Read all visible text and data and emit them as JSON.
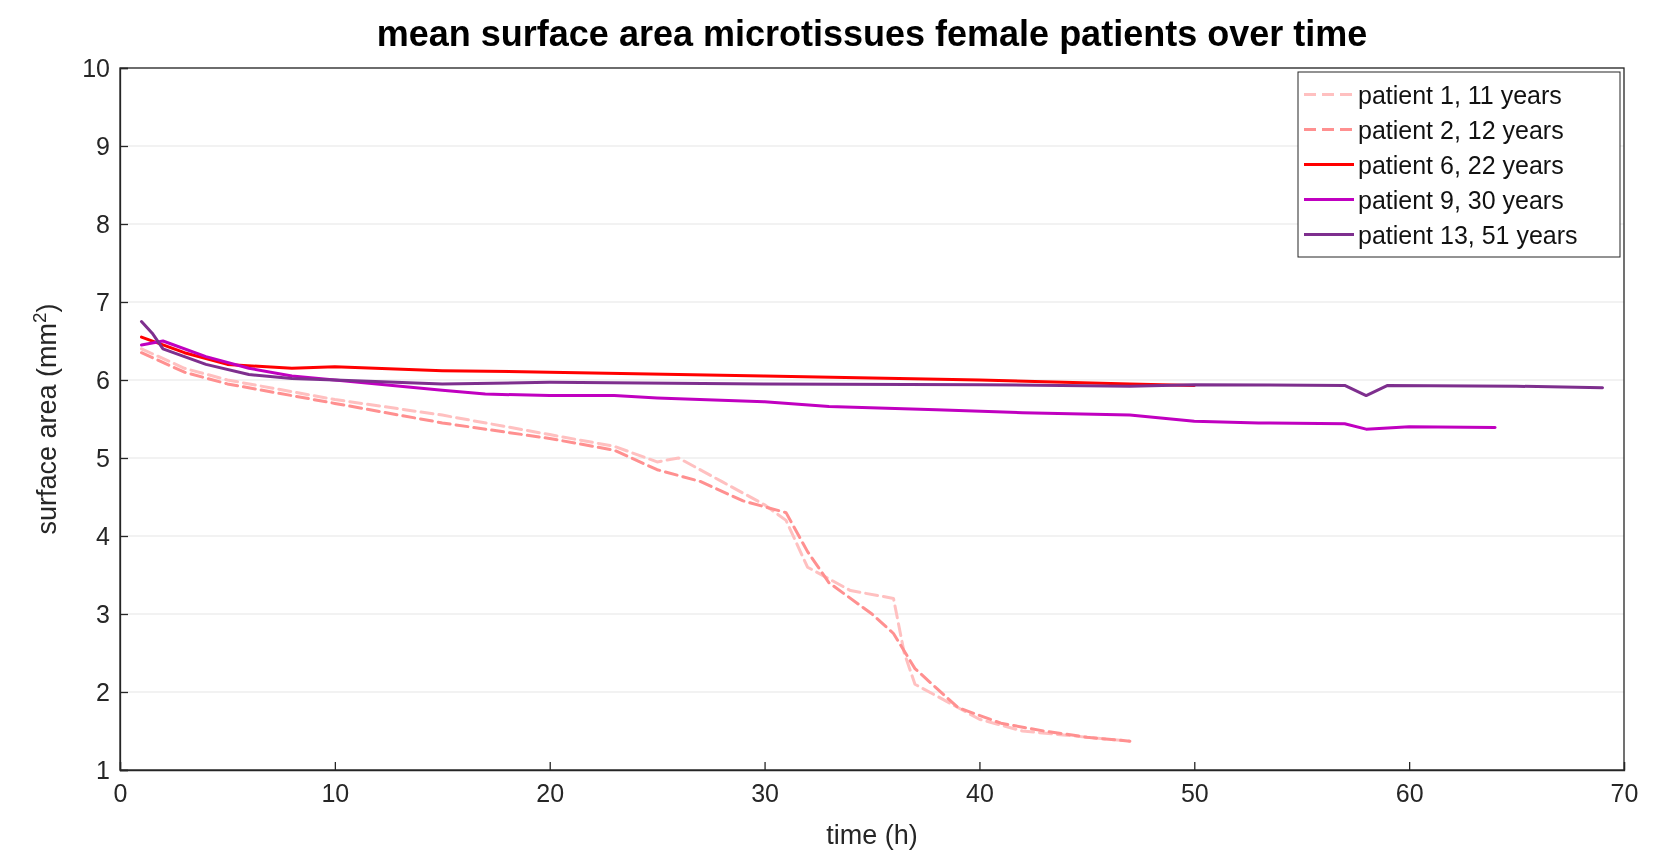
{
  "chart_data": {
    "type": "line",
    "title": "mean surface area microtissues female patients over time",
    "xlabel": "time (h)",
    "ylabel": "surface area (mm$^{2}$)",
    "xlim": [
      0,
      70
    ],
    "xticks": [
      0,
      10,
      20,
      30,
      40,
      50,
      60,
      70
    ],
    "ylim": [
      1,
      10
    ],
    "yticks": [
      1,
      2,
      3,
      4,
      5,
      6,
      7,
      8,
      9,
      10
    ],
    "grid": "y",
    "legend": "top right",
    "series": [
      {
        "name": "patient 1, 11 years",
        "color": "#ffc0c0",
        "line_style": "dashed",
        "x": [
          1,
          3,
          5,
          8,
          10,
          15,
          20,
          23,
          25,
          26,
          28,
          30,
          31,
          32,
          34,
          36,
          36.5,
          37,
          38,
          40,
          42,
          45,
          47
        ],
        "values": [
          6.4,
          6.15,
          6.0,
          5.85,
          5.75,
          5.55,
          5.3,
          5.15,
          4.95,
          5.0,
          4.7,
          4.4,
          4.2,
          3.6,
          3.3,
          3.2,
          2.5,
          2.1,
          1.95,
          1.65,
          1.5,
          1.42,
          1.37
        ]
      },
      {
        "name": "patient 2, 12 years",
        "color": "#ff9090",
        "line_style": "dashed",
        "x": [
          1,
          3,
          5,
          8,
          10,
          15,
          20,
          23,
          25,
          27,
          29,
          31,
          32,
          33,
          35,
          36,
          37,
          38,
          39,
          41,
          43,
          45,
          47
        ],
        "values": [
          6.35,
          6.1,
          5.95,
          5.8,
          5.7,
          5.45,
          5.25,
          5.1,
          4.85,
          4.7,
          4.45,
          4.3,
          3.8,
          3.4,
          3.0,
          2.75,
          2.3,
          2.05,
          1.8,
          1.6,
          1.5,
          1.42,
          1.37
        ]
      },
      {
        "name": "patient 6, 22 years",
        "color": "#ff0000",
        "line_style": "solid",
        "x": [
          1,
          3,
          5,
          8,
          10,
          15,
          20,
          30,
          40,
          47,
          50
        ],
        "values": [
          6.55,
          6.35,
          6.2,
          6.15,
          6.17,
          6.12,
          6.1,
          6.05,
          6.0,
          5.95,
          5.93
        ]
      },
      {
        "name": "patient 9, 30 years",
        "color": "#c000c0",
        "line_style": "solid",
        "x": [
          1,
          2,
          4,
          6,
          8,
          10,
          15,
          17,
          20,
          23,
          25,
          30,
          33,
          38,
          42,
          47,
          50,
          53,
          57,
          58,
          60,
          64
        ],
        "values": [
          6.45,
          6.5,
          6.3,
          6.15,
          6.05,
          6.0,
          5.87,
          5.82,
          5.8,
          5.8,
          5.77,
          5.72,
          5.66,
          5.62,
          5.58,
          5.55,
          5.47,
          5.45,
          5.44,
          5.37,
          5.4,
          5.39
        ]
      },
      {
        "name": "patient 13, 51 years",
        "color": "#7e2f8e",
        "line_style": "solid",
        "x": [
          1,
          1.5,
          2,
          4,
          6,
          8,
          10,
          15,
          20,
          30,
          40,
          47,
          50,
          57,
          58,
          59,
          65,
          69
        ],
        "values": [
          6.75,
          6.6,
          6.4,
          6.2,
          6.07,
          6.02,
          6.0,
          5.95,
          5.97,
          5.95,
          5.94,
          5.92,
          5.94,
          5.93,
          5.8,
          5.93,
          5.92,
          5.9
        ]
      }
    ]
  }
}
